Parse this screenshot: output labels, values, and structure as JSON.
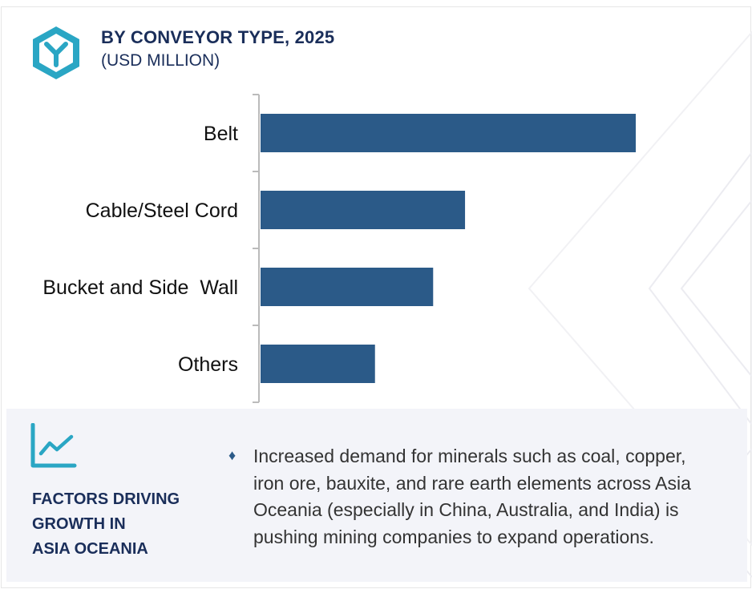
{
  "header": {
    "title": "BY CONVEYOR TYPE, 2025",
    "subtitle": "(USD MILLION)",
    "logo_icon": "cube-y-logo-icon"
  },
  "chart_data": {
    "type": "bar",
    "orientation": "horizontal",
    "title": "BY CONVEYOR TYPE, 2025",
    "subtitle": "(USD MILLION)",
    "categories": [
      "Belt",
      "Cable/Steel Cord",
      "Bucket and Side  Wall",
      "Others"
    ],
    "values": [
      100,
      54.5,
      46,
      30.5
    ],
    "value_axis_labels_shown": false,
    "xlim": [
      0,
      100
    ],
    "grid": false,
    "bar_color": "#2b5a88"
  },
  "factors": {
    "icon": "trend-chart-icon",
    "title_lines": [
      "FACTORS DRIVING",
      "GROWTH IN",
      "ASIA OCEANIA"
    ],
    "bullet_icon": "diamond-bullet-icon",
    "bullet_lines": [
      "Increased demand for minerals such as coal, copper,",
      "iron ore, bauxite, and rare earth elements across Asia",
      "Oceania (especially in China, Australia, and India) is",
      "pushing mining companies to expand operations."
    ]
  },
  "colors": {
    "accent": "#2aa6c4",
    "navy": "#1a2e5a",
    "bar": "#2b5a88",
    "panel": "#f3f4f9"
  }
}
